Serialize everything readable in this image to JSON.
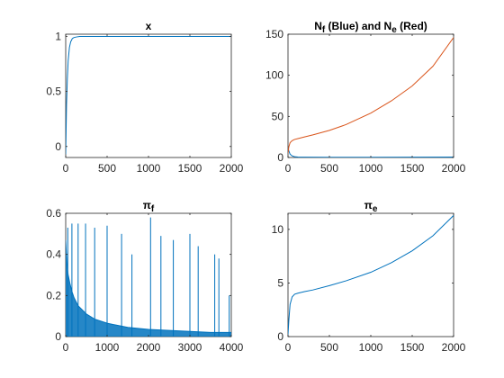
{
  "chart_data": [
    {
      "type": "line",
      "title_parts": [
        {
          "t": "x"
        }
      ],
      "xlim": [
        0,
        2000
      ],
      "ylim": [
        -0.1,
        1.02
      ],
      "xticks": [
        0,
        500,
        1000,
        1500,
        2000
      ],
      "yticks": [
        0,
        0.5,
        1
      ],
      "grid": false,
      "series": [
        {
          "color": "#0072BD",
          "x": [
            0,
            5,
            10,
            20,
            30,
            45,
            60,
            80,
            100,
            130,
            170,
            250,
            500,
            1000,
            1500,
            2000
          ],
          "y": [
            -0.07,
            0.15,
            0.38,
            0.62,
            0.78,
            0.9,
            0.95,
            0.98,
            0.99,
            0.995,
            1.0,
            1.0,
            1.0,
            1.0,
            1.0,
            1.0
          ]
        }
      ]
    },
    {
      "type": "line",
      "title_parts": [
        {
          "t": "N"
        },
        {
          "t": "f",
          "sub": true
        },
        {
          "t": " (Blue) and N"
        },
        {
          "t": "e",
          "sub": true
        },
        {
          "t": " (Red)"
        }
      ],
      "xlim": [
        0,
        2000
      ],
      "ylim": [
        0,
        150
      ],
      "xticks": [
        0,
        500,
        1000,
        1500,
        2000
      ],
      "yticks": [
        0,
        50,
        100,
        150
      ],
      "grid": false,
      "series": [
        {
          "color": "#0072BD",
          "x": [
            0,
            10,
            25,
            50,
            80,
            120,
            200,
            500,
            1000,
            1500,
            2000
          ],
          "y": [
            12,
            8,
            4,
            2,
            1,
            0.6,
            0.4,
            0.3,
            0.3,
            0.4,
            0.5
          ]
        },
        {
          "color": "#D95319",
          "x": [
            0,
            10,
            25,
            50,
            80,
            120,
            200,
            300,
            500,
            700,
            1000,
            1250,
            1500,
            1750,
            2000
          ],
          "y": [
            5,
            13,
            18,
            20.5,
            22,
            23,
            25,
            27.5,
            33,
            40,
            54,
            69,
            87,
            111,
            146
          ]
        }
      ]
    },
    {
      "type": "line",
      "title_parts": [
        {
          "t": "π"
        },
        {
          "t": "f",
          "sub": true
        }
      ],
      "xlim": [
        0,
        4000
      ],
      "ylim": [
        0,
        0.6
      ],
      "xticks": [
        0,
        1000,
        2000,
        3000,
        4000
      ],
      "yticks": [
        0,
        0.2,
        0.4,
        0.6
      ],
      "grid": false,
      "series": [
        {
          "color": "#0072BD",
          "x": [
            0,
            20,
            40,
            60,
            100,
            150,
            200,
            300,
            500,
            700,
            1000,
            1500,
            2000,
            2500,
            3000,
            3500,
            4000
          ],
          "y": [
            0.47,
            0.39,
            0.33,
            0.3,
            0.26,
            0.22,
            0.19,
            0.15,
            0.11,
            0.085,
            0.065,
            0.045,
            0.035,
            0.03,
            0.025,
            0.02,
            0.02
          ]
        },
        {
          "color": "#0072BD",
          "spikes": true,
          "x": [
            50,
            150,
            300,
            480,
            700,
            1000,
            1350,
            1600,
            2050,
            2300,
            2600,
            3000,
            3200,
            3600,
            3700,
            3950
          ],
          "y": [
            0.53,
            0.55,
            0.55,
            0.55,
            0.53,
            0.54,
            0.5,
            0.4,
            0.58,
            0.49,
            0.47,
            0.5,
            0.44,
            0.4,
            0.38,
            0.2
          ]
        }
      ]
    },
    {
      "type": "line",
      "title_parts": [
        {
          "t": "π"
        },
        {
          "t": "e",
          "sub": true
        }
      ],
      "xlim": [
        0,
        2000
      ],
      "ylim": [
        0,
        11.5
      ],
      "xticks": [
        0,
        500,
        1000,
        1500,
        2000
      ],
      "yticks": [
        0,
        5,
        10
      ],
      "grid": false,
      "series": [
        {
          "color": "#0072BD",
          "x": [
            0,
            10,
            25,
            50,
            80,
            120,
            200,
            300,
            500,
            700,
            1000,
            1250,
            1500,
            1750,
            2000
          ],
          "y": [
            0.2,
            1.5,
            3.0,
            3.7,
            3.95,
            4.05,
            4.2,
            4.35,
            4.75,
            5.2,
            6.0,
            6.9,
            8.0,
            9.4,
            11.3
          ]
        }
      ]
    }
  ]
}
